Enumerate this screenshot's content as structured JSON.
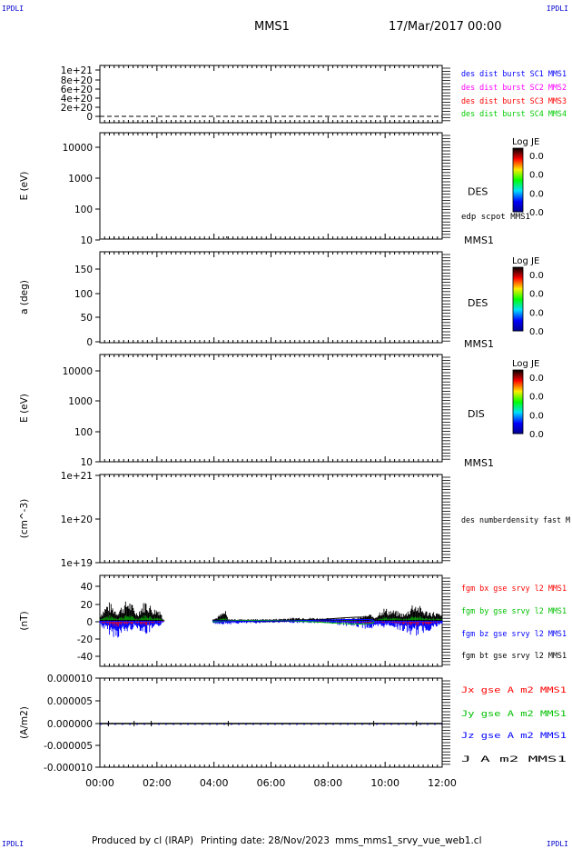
{
  "header": {
    "corner_left_top": "IPDLI",
    "corner_right_top": "IPDLI",
    "corner_left_bottom": "IPDLI",
    "corner_right_bottom": "IPDLI",
    "title": "MMS1",
    "date": "17/Mar/2017 00:00"
  },
  "footer": {
    "produced_by": "Produced by cl (IRAP)",
    "printing_date": "Printing date: 28/Nov/2023",
    "file": "mms_mms1_srvy_vue_web1.cl"
  },
  "colors": {
    "mms1": "#0000ff",
    "mms2": "#ff00ff",
    "mms3": "#ff0000",
    "mms4": "#00cc00",
    "bx": "#ff0000",
    "by": "#00c000",
    "bz": "#0000ff",
    "bt": "#000000"
  },
  "chart_data": {
    "type": "line",
    "x_axis": {
      "ticks": [
        "00:00",
        "02:00",
        "04:00",
        "06:00",
        "08:00",
        "10:00",
        "12:00"
      ],
      "range_hours": [
        0,
        12
      ]
    },
    "panels": [
      {
        "id": "dist",
        "type": "line",
        "ylabel": "",
        "yticks": [
          "1e+21",
          "8e+20",
          "6e+20",
          "4e+20",
          "2e+20",
          "0"
        ],
        "legend": [
          {
            "text": "des dist burst SC1 MMS1",
            "color": "#0000ff"
          },
          {
            "text": "des dist burst SC2 MMS2",
            "color": "#ff00ff"
          },
          {
            "text": "des dist burst SC3 MMS3",
            "color": "#ff0000"
          },
          {
            "text": "des dist burst SC4 MMS4",
            "color": "#00cc00"
          }
        ],
        "series_value": 0
      },
      {
        "id": "des_energy",
        "type": "heatmap",
        "ylabel": "E (eV)",
        "yscale": "log",
        "yticks": [
          "10000",
          "1000",
          "100",
          "10"
        ],
        "right_label": "DES",
        "right_overlay": "edp scpot MMS1",
        "bottom_right": "MMS1",
        "colorbar": {
          "title": "Log JE",
          "ticks": [
            "0.0",
            "0.0",
            "0.0",
            "0.0"
          ]
        }
      },
      {
        "id": "des_pitch",
        "type": "heatmap",
        "ylabel": "a (deg)",
        "yticks": [
          "150",
          "100",
          "50",
          "0"
        ],
        "ylim": [
          0,
          180
        ],
        "right_label": "DES",
        "bottom_right": "MMS1",
        "colorbar": {
          "title": "Log JE",
          "ticks": [
            "0.0",
            "0.0",
            "0.0",
            "0.0"
          ]
        }
      },
      {
        "id": "dis_energy",
        "type": "heatmap",
        "ylabel": "E (eV)",
        "yscale": "log",
        "yticks": [
          "10000",
          "1000",
          "100",
          "10"
        ],
        "right_label": "DIS",
        "bottom_right": "MMS1",
        "colorbar": {
          "title": "Log JE",
          "ticks": [
            "0.0",
            "0.0",
            "0.0",
            "0.0"
          ]
        }
      },
      {
        "id": "density",
        "type": "line",
        "ylabel": "(cm^-3)",
        "yscale": "log",
        "yticks": [
          "1e+21",
          "1e+20",
          "1e+19"
        ],
        "legend": [
          {
            "text": "des numberdensity fast M",
            "color": "#000000"
          }
        ]
      },
      {
        "id": "fgm",
        "type": "line",
        "ylabel": "(nT)",
        "yticks": [
          "40",
          "20",
          "0",
          "-20",
          "-40"
        ],
        "ylim": [
          -50,
          50
        ],
        "legend": [
          {
            "text": "fgm bx gse srvy l2 MMS1",
            "color": "#ff0000"
          },
          {
            "text": "fgm by gse srvy l2 MMS1",
            "color": "#00c000"
          },
          {
            "text": "fgm bz gse srvy l2 MMS1",
            "color": "#0000ff"
          },
          {
            "text": "fgm bt gse srvy l2 MMS1",
            "color": "#000000"
          }
        ],
        "bt_envelope": [
          [
            0.0,
            8
          ],
          [
            0.3,
            22
          ],
          [
            0.6,
            12
          ],
          [
            1.0,
            25
          ],
          [
            1.3,
            10
          ],
          [
            1.6,
            24
          ],
          [
            1.9,
            14
          ],
          [
            2.1,
            15
          ],
          [
            2.2,
            3
          ],
          [
            4.0,
            2
          ],
          [
            4.4,
            12
          ],
          [
            4.5,
            2
          ],
          [
            6.0,
            2
          ],
          [
            7.0,
            4
          ],
          [
            8.0,
            3
          ],
          [
            9.0,
            3
          ],
          [
            9.5,
            8
          ],
          [
            9.6,
            3
          ],
          [
            9.9,
            15
          ],
          [
            10.3,
            12
          ],
          [
            10.7,
            8
          ],
          [
            11.0,
            22
          ],
          [
            11.4,
            12
          ],
          [
            11.8,
            10
          ],
          [
            12.0,
            6
          ]
        ],
        "bz_negative": [
          [
            0.0,
            -5
          ],
          [
            0.3,
            -15
          ],
          [
            0.6,
            -20
          ],
          [
            1.0,
            -12
          ],
          [
            1.3,
            -8
          ],
          [
            1.6,
            -16
          ],
          [
            2.0,
            -10
          ],
          [
            2.2,
            -2
          ],
          [
            4.5,
            -4
          ],
          [
            6.0,
            -2
          ],
          [
            8.0,
            -3
          ],
          [
            9.6,
            -10
          ],
          [
            10.2,
            -6
          ],
          [
            11.0,
            -18
          ],
          [
            11.5,
            -12
          ],
          [
            12.0,
            -5
          ]
        ]
      },
      {
        "id": "current",
        "type": "line",
        "ylabel": "(A/m2)",
        "yticks": [
          "0.000010",
          "0.000005",
          "0.000000",
          "-0.000005",
          "-0.000010"
        ],
        "ylim": [
          -1e-05,
          1e-05
        ],
        "legend": [
          {
            "text": "Jx gse A m2 MMS1",
            "color": "#ff0000"
          },
          {
            "text": "Jy gse A m2 MMS1",
            "color": "#00c000"
          },
          {
            "text": "Jz gse A m2 MMS1",
            "color": "#0000ff"
          },
          {
            "text": "J A m2 MMS1",
            "color": "#000000"
          }
        ],
        "series_value": 0
      }
    ]
  }
}
